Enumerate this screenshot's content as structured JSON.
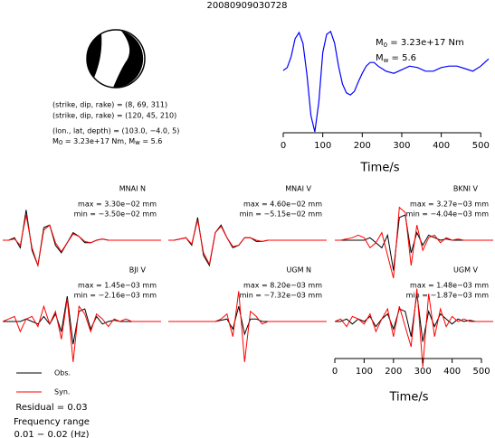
{
  "title": "20080909030728",
  "mechanism": {
    "lines": [
      "(strike, dip, rake) = (8, 69, 311)",
      "(strike, dip, rake) = (120, 45, 210)",
      "(lon., lat, depth) = (103.0, −4.0, 5)"
    ],
    "moment": [
      "M",
      "0",
      " = 3.23e+17 Nm, M",
      "w",
      " = 5.6"
    ]
  },
  "chart_data": [
    {
      "type": "line",
      "xlabel": "Time/s",
      "color": "#0000ff",
      "annotations": [
        [
          "M",
          "0",
          " = 3.23e+17 Nm"
        ],
        [
          "M",
          "w",
          " = 5.6"
        ]
      ],
      "x": [
        0,
        10,
        20,
        30,
        40,
        50,
        60,
        70,
        80,
        90,
        100,
        110,
        120,
        130,
        140,
        150,
        160,
        170,
        180,
        190,
        200,
        210,
        220,
        230,
        240,
        260,
        280,
        300,
        320,
        340,
        360,
        380,
        400,
        420,
        440,
        460,
        480,
        500,
        510,
        520
      ],
      "values": [
        0,
        0.08,
        0.38,
        0.88,
        1.05,
        0.75,
        -0.12,
        -1.25,
        -1.7,
        -0.88,
        0.5,
        1.0,
        1.08,
        0.75,
        0.12,
        -0.38,
        -0.62,
        -0.68,
        -0.58,
        -0.32,
        -0.08,
        0.12,
        0.22,
        0.22,
        0.12,
        -0.02,
        -0.08,
        0.02,
        0.12,
        0.08,
        -0.02,
        -0.02,
        0.08,
        0.12,
        0.12,
        0.05,
        -0.02,
        0.12,
        0.22,
        0.32
      ],
      "xlim": [
        0,
        520
      ],
      "ylim": [
        -1.75,
        1.25
      ],
      "xticks": [
        0,
        100,
        200,
        300,
        400,
        500
      ]
    },
    {
      "type": "waveform",
      "xlabel": "Time/s",
      "series": [
        {
          "name": "Obs.",
          "color": "#000000"
        },
        {
          "name": "Syn.",
          "color": "#ff0000"
        }
      ],
      "x": [
        0,
        20,
        40,
        60,
        80,
        100,
        120,
        140,
        160,
        180,
        200,
        220,
        240,
        260,
        280,
        300,
        320,
        340,
        360,
        380,
        400,
        420,
        440,
        460,
        480,
        500,
        520,
        540
      ],
      "xlim": [
        0,
        540
      ],
      "ylim": [
        -1,
        1
      ],
      "xticks": [
        0,
        100,
        200,
        300,
        400,
        500
      ],
      "panels": [
        {
          "label": "MNAI N",
          "max": "max = 3.30e−02 mm",
          "min": "min = −3.50e−02 mm",
          "values": [
            [
              0,
              0,
              0.1,
              -0.3,
              1.2,
              -0.4,
              -1.0,
              0.5,
              0.6,
              -0.2,
              -0.5,
              -0.1,
              0.3,
              0.15,
              -0.1,
              -0.1,
              0,
              0.05,
              0,
              0,
              0,
              0,
              0,
              0,
              0,
              0,
              0,
              0
            ],
            [
              0,
              0,
              0.05,
              -0.2,
              1.0,
              -0.3,
              -1.0,
              0.4,
              0.6,
              -0.1,
              -0.45,
              -0.1,
              0.25,
              0.15,
              -0.05,
              -0.1,
              0,
              0.05,
              0,
              0,
              0,
              0,
              0,
              0,
              0,
              0,
              0,
              0
            ]
          ]
        },
        {
          "label": "MNAI V",
          "max": "max = 4.60e−02 mm",
          "min": "min = −5.15e−02 mm",
          "values": [
            [
              0,
              0,
              0.05,
              0.1,
              -0.2,
              0.9,
              -0.6,
              -1.0,
              0.3,
              0.6,
              0.1,
              -0.3,
              -0.2,
              0.1,
              0.1,
              -0.05,
              -0.05,
              0,
              0,
              0,
              0,
              0,
              0,
              0,
              0,
              0,
              0,
              0
            ],
            [
              0,
              0,
              0.05,
              0.1,
              -0.15,
              0.8,
              -0.5,
              -0.95,
              0.3,
              0.55,
              0.1,
              -0.25,
              -0.2,
              0.1,
              0.1,
              0,
              -0.05,
              0,
              0,
              0,
              0,
              0,
              0,
              0,
              0,
              0,
              0,
              0
            ]
          ]
        },
        {
          "label": "BKNI V",
          "max": "max = 3.27e−03 mm",
          "min": "min = −4.04e−03 mm",
          "values": [
            [
              0,
              0,
              0,
              0,
              0,
              0,
              0.1,
              -0.1,
              -0.3,
              0.2,
              -1.2,
              0.9,
              1.0,
              -0.5,
              0.3,
              -0.2,
              0.2,
              0.1,
              0,
              0.05,
              0,
              0,
              0,
              0,
              0,
              0,
              0,
              0
            ],
            [
              0,
              0,
              0.05,
              0.1,
              0.2,
              0.1,
              -0.3,
              -0.1,
              0.3,
              -0.6,
              -1.5,
              1.3,
              1.1,
              -1.0,
              0.6,
              -0.4,
              0.1,
              0.2,
              -0.1,
              0.1,
              0,
              0.05,
              0,
              0,
              0,
              0,
              0,
              0
            ]
          ]
        },
        {
          "label": "BJI V",
          "max": "max = 1.45e−03 mm",
          "min": "min = −2.16e−03 mm",
          "values": [
            [
              0,
              0,
              0,
              0,
              0.1,
              0,
              -0.1,
              0.2,
              -0.1,
              0.3,
              -0.4,
              1.0,
              -0.9,
              0.4,
              0.5,
              -0.3,
              0.2,
              -0.1,
              0,
              0.05,
              0,
              0,
              0,
              0,
              0,
              0,
              0,
              0
            ],
            [
              0,
              0.1,
              0.2,
              -0.4,
              0.1,
              0.2,
              -0.2,
              0.6,
              -0.1,
              0.4,
              -0.7,
              0.9,
              -1.6,
              0.6,
              0.3,
              -0.4,
              0.3,
              0.1,
              -0.2,
              0.1,
              0,
              0.1,
              0,
              0,
              0,
              0,
              0,
              0
            ]
          ]
        },
        {
          "label": "UGM N",
          "max": "max = 8.20e−03 mm",
          "min": "min = −7.32e−03 mm",
          "values": [
            [
              0,
              0,
              0,
              0,
              0,
              0,
              0,
              0,
              0,
              0.05,
              0.1,
              -0.3,
              0.6,
              -0.5,
              0.1,
              0.1,
              0,
              0,
              0,
              0,
              0,
              0,
              0,
              0,
              0,
              0,
              0,
              0
            ],
            [
              0,
              0,
              0,
              0,
              0,
              0,
              0,
              0,
              0,
              0.1,
              0.3,
              -0.6,
              1.2,
              -1.6,
              0.4,
              0.2,
              -0.1,
              0,
              0,
              0,
              0,
              0,
              0,
              0,
              0,
              0,
              0,
              0
            ]
          ]
        },
        {
          "label": "UGM V",
          "max": "max = 1.48e−03 mm",
          "min": "min = −1.87e−03 mm",
          "values": [
            [
              0,
              0,
              0.1,
              -0.1,
              0.1,
              0,
              0.2,
              -0.2,
              0.1,
              0.3,
              -0.3,
              0.5,
              0.4,
              -0.6,
              1.1,
              -0.8,
              0.4,
              -0.2,
              0.3,
              0.1,
              -0.1,
              0.1,
              0,
              0.05,
              0,
              0,
              0,
              0
            ],
            [
              0,
              0.1,
              -0.2,
              0.2,
              0.1,
              -0.1,
              0.3,
              -0.4,
              0.1,
              0.5,
              -0.6,
              0.6,
              -0.2,
              -1.0,
              1.3,
              -1.8,
              1.1,
              -0.6,
              0.5,
              -0.2,
              0.2,
              0,
              0.1,
              0,
              0,
              0,
              0,
              0
            ]
          ]
        }
      ]
    }
  ],
  "notes": [
    "Residual = 0.03",
    "Frequency range",
    "0.01 − 0.02 (Hz)"
  ]
}
